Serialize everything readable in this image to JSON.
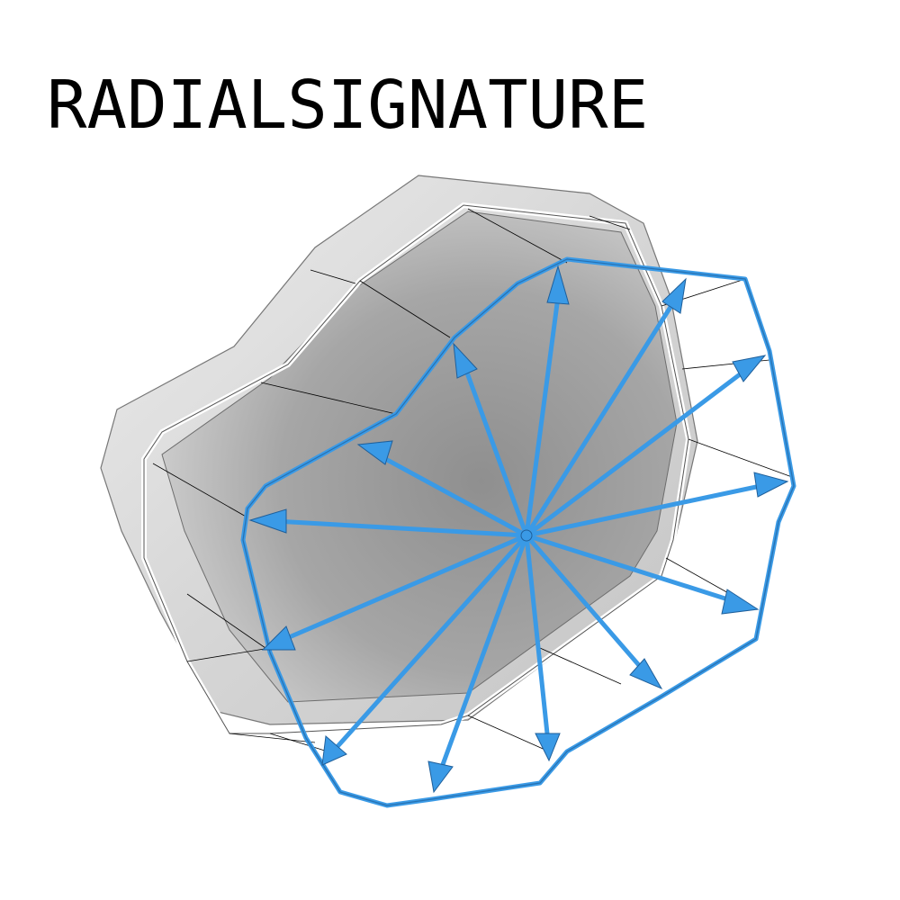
{
  "title": "RADIALSIGNATURE",
  "colors": {
    "accent": "#3a9ae6",
    "accent_dark": "#1f6fb0",
    "shape_outer": "#e0e0e0",
    "shape_inner": "#9a9a9a",
    "outline": "#ffffff",
    "guide": "#000000"
  },
  "diagram": {
    "ray_count": 16,
    "icons": [
      "arrow-icon"
    ]
  }
}
